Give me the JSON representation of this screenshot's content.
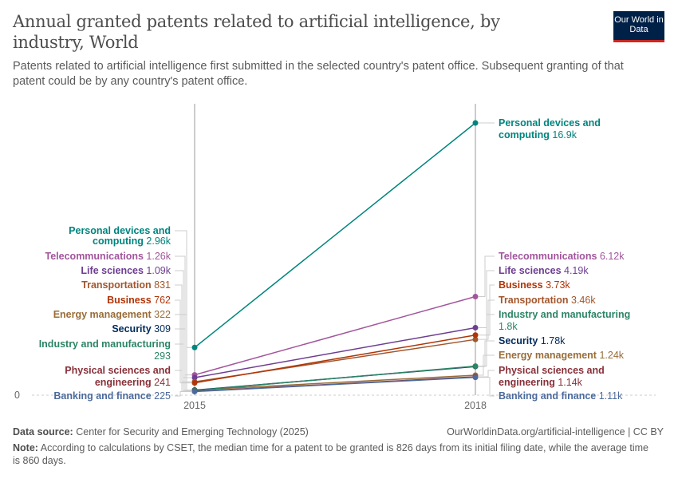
{
  "header": {
    "title": "Annual granted patents related to artificial intelligence, by industry, World",
    "subtitle": "Patents related to artificial intelligence first submitted in the selected country's patent office. Subsequent granting of that patent could be by any country's patent office.",
    "logo": "Our World in Data"
  },
  "chart_data": {
    "type": "line",
    "title": "Annual granted patents related to artificial intelligence, by industry, World",
    "x": [
      2015,
      2018
    ],
    "x_tick_labels": [
      "2015",
      "2018"
    ],
    "y_tick_labels": [
      "0"
    ],
    "ylim": [
      0,
      16900
    ],
    "grid": "horizontal baseline only",
    "legend": "inline labels at both ends",
    "series": [
      {
        "name": "Personal devices and computing",
        "values": [
          2960,
          16900
        ],
        "labels": [
          "2.96k",
          "16.9k"
        ],
        "color": "#00847e"
      },
      {
        "name": "Telecommunications",
        "values": [
          1260,
          6120
        ],
        "labels": [
          "1.26k",
          "6.12k"
        ],
        "color": "#a2559c"
      },
      {
        "name": "Life sciences",
        "values": [
          1090,
          4190
        ],
        "labels": [
          "1.09k",
          "4.19k"
        ],
        "color": "#6d3e91"
      },
      {
        "name": "Transportation",
        "values": [
          831,
          3460
        ],
        "labels": [
          "831",
          "3.46k"
        ],
        "color": "#a2562c"
      },
      {
        "name": "Business",
        "values": [
          762,
          3730
        ],
        "labels": [
          "762",
          "3.73k"
        ],
        "color": "#b13507"
      },
      {
        "name": "Energy management",
        "values": [
          322,
          1240
        ],
        "labels": [
          "322",
          "1.24k"
        ],
        "color": "#996d39"
      },
      {
        "name": "Security",
        "values": [
          309,
          1780
        ],
        "labels": [
          "309",
          "1.78k"
        ],
        "color": "#00295b"
      },
      {
        "name": "Industry and manufacturing",
        "values": [
          293,
          1800
        ],
        "labels": [
          "293",
          "1.8k"
        ],
        "color": "#2c8465"
      },
      {
        "name": "Physical sciences and engineering",
        "values": [
          241,
          1140
        ],
        "labels": [
          "241",
          "1.14k"
        ],
        "color": "#883039"
      },
      {
        "name": "Banking and finance",
        "values": [
          225,
          1110
        ],
        "labels": [
          "225",
          "1.11k"
        ],
        "color": "#4c6a9c"
      }
    ]
  },
  "footer": {
    "source_label": "Data source:",
    "source": "Center for Security and Emerging Technology (2025)",
    "url": "OurWorldinData.org/artificial-intelligence | CC BY",
    "note_label": "Note:",
    "note": "According to calculations by CSET, the median time for a patent to be granted is 826 days from its initial filing date, while the average time is 860 days."
  }
}
